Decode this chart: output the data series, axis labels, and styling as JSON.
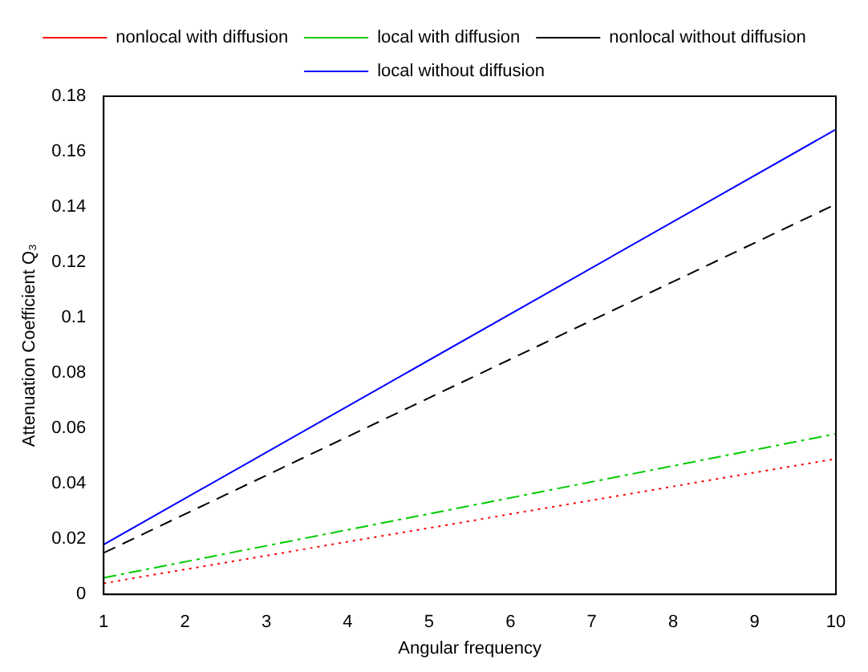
{
  "chart_data": {
    "type": "line",
    "xlabel": "Angular frequency",
    "ylabel": "Attenuation Coefficient Q₃",
    "x": [
      1,
      10
    ],
    "series": [
      {
        "name": "nonlocal with diffusion",
        "color": "#ff0000",
        "line_style": "dotted",
        "values": [
          0.004,
          0.049
        ]
      },
      {
        "name": "local with diffusion",
        "color": "#00cc00",
        "line_style": "dashdot",
        "values": [
          0.006,
          0.058
        ]
      },
      {
        "name": "nonlocal without diffusion",
        "color": "#000000",
        "line_style": "dashed",
        "values": [
          0.015,
          0.141
        ]
      },
      {
        "name": "local without diffusion",
        "color": "#0000ff",
        "line_style": "solid",
        "values": [
          0.018,
          0.168
        ]
      }
    ],
    "xlim": [
      1,
      10
    ],
    "xticks": [
      1,
      2,
      3,
      4,
      5,
      6,
      7,
      8,
      9,
      10
    ],
    "ylim": [
      0,
      0.18
    ],
    "yticks": [
      0,
      0.02,
      0.04,
      0.06,
      0.08,
      0.1,
      0.12,
      0.14,
      0.16,
      0.18
    ],
    "grid": false,
    "legend": "top",
    "marker": "none"
  }
}
